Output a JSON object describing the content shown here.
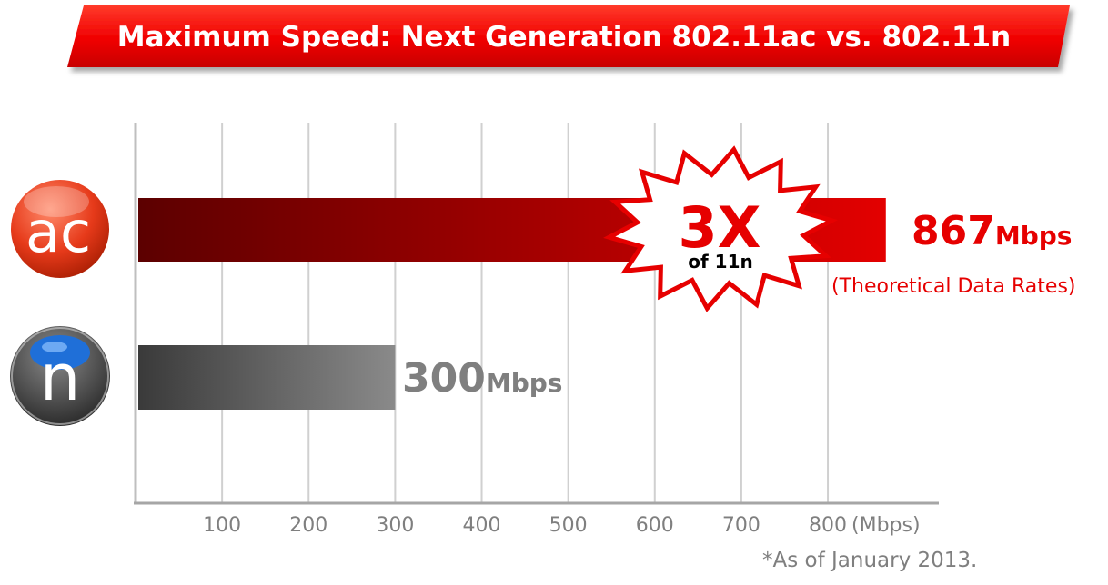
{
  "header": {
    "title": "Maximum Speed: Next Generation 802.11ac vs. 802.11n"
  },
  "chart_data": {
    "type": "bar",
    "orientation": "horizontal",
    "categories": [
      "ac",
      "n"
    ],
    "values": [
      867,
      300
    ],
    "value_labels": [
      {
        "number": "867",
        "unit": "Mbps"
      },
      {
        "number": "300",
        "unit": "Mbps"
      }
    ],
    "xlim": [
      0,
      900
    ],
    "x_ticks": [
      100,
      200,
      300,
      400,
      500,
      600,
      700,
      800
    ],
    "x_unit_label": "(Mbps)",
    "grid": true,
    "colors": {
      "ac_bar_dark": "#5c0000",
      "ac_bar_light": "#e30000",
      "n_bar_dark": "#3a3a3a",
      "n_bar_light": "#8a8a8a",
      "accent": "#e60000",
      "value_gray": "#7f7f7f"
    },
    "icons": [
      "ac-logo-icon",
      "n-logo-icon"
    ],
    "annotations": {
      "burst_main": "3X",
      "burst_sub": "of 11n",
      "ac_note": "(Theoretical Data Rates)",
      "footnote": "*As of January 2013."
    }
  }
}
